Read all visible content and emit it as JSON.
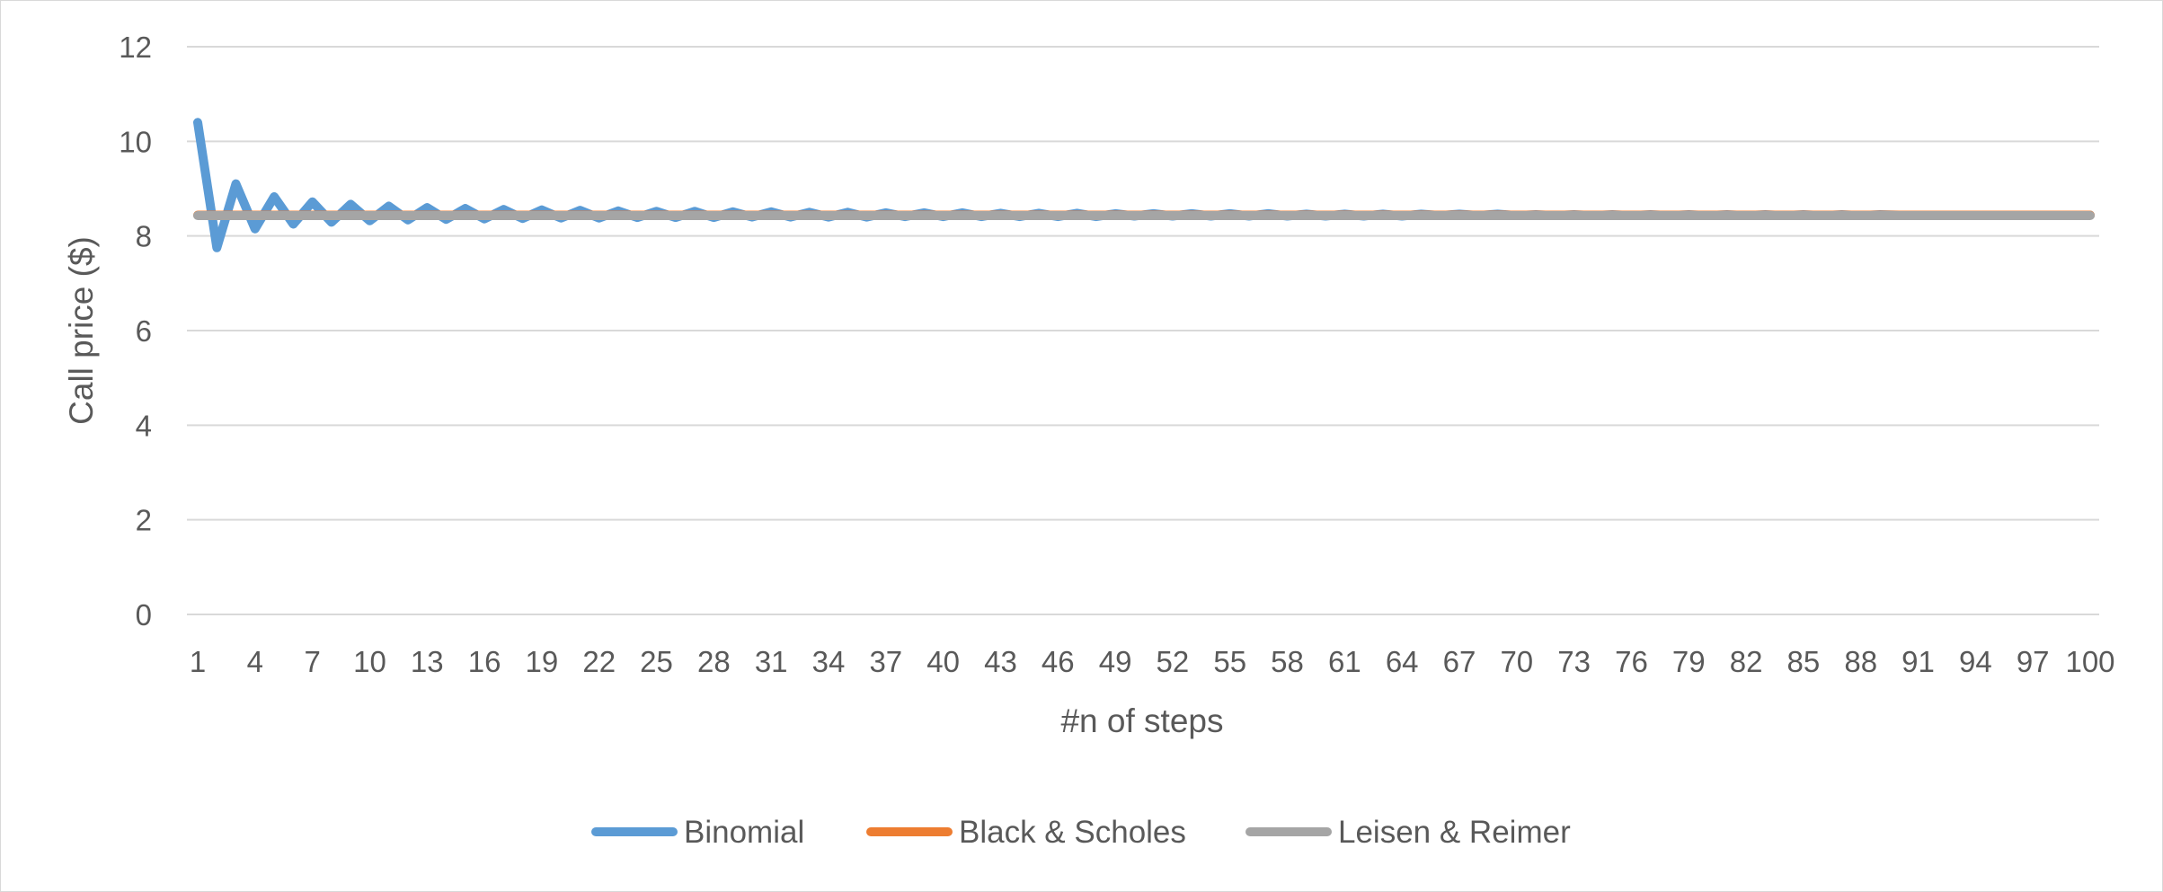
{
  "chart_data": {
    "type": "line",
    "title": "",
    "xlabel": "#n of steps",
    "ylabel": "Call price ($)",
    "ylim": [
      0,
      12
    ],
    "yticks": [
      0,
      2,
      4,
      6,
      8,
      10,
      12
    ],
    "x_tick_labels": [
      "1",
      "4",
      "7",
      "10",
      "13",
      "16",
      "19",
      "22",
      "25",
      "28",
      "31",
      "34",
      "37",
      "40",
      "43",
      "46",
      "49",
      "52",
      "55",
      "58",
      "61",
      "64",
      "67",
      "70",
      "73",
      "76",
      "79",
      "82",
      "85",
      "88",
      "91",
      "94",
      "97",
      "100"
    ],
    "grid": true,
    "legend_position": "bottom",
    "x": [
      1,
      2,
      3,
      4,
      5,
      6,
      7,
      8,
      9,
      10,
      11,
      12,
      13,
      14,
      15,
      16,
      17,
      18,
      19,
      20,
      21,
      22,
      23,
      24,
      25,
      26,
      27,
      28,
      29,
      30,
      31,
      32,
      33,
      34,
      35,
      36,
      37,
      38,
      39,
      40,
      41,
      42,
      43,
      44,
      45,
      46,
      47,
      48,
      49,
      50,
      51,
      52,
      53,
      54,
      55,
      56,
      57,
      58,
      59,
      60,
      61,
      62,
      63,
      64,
      65,
      66,
      67,
      68,
      69,
      70,
      71,
      72,
      73,
      74,
      75,
      76,
      77,
      78,
      79,
      80,
      81,
      82,
      83,
      84,
      85,
      86,
      87,
      88,
      89,
      90,
      91,
      92,
      93,
      94,
      95,
      96,
      97,
      98,
      99,
      100
    ],
    "series": [
      {
        "name": "Binomial",
        "color": "#5b9bd5",
        "values": [
          10.4,
          7.75,
          9.1,
          8.15,
          8.83,
          8.25,
          8.72,
          8.29,
          8.67,
          8.32,
          8.63,
          8.34,
          8.6,
          8.35,
          8.58,
          8.36,
          8.56,
          8.37,
          8.55,
          8.38,
          8.54,
          8.38,
          8.53,
          8.39,
          8.52,
          8.39,
          8.52,
          8.39,
          8.51,
          8.4,
          8.51,
          8.4,
          8.5,
          8.4,
          8.5,
          8.4,
          8.49,
          8.41,
          8.49,
          8.41,
          8.49,
          8.41,
          8.48,
          8.41,
          8.48,
          8.41,
          8.48,
          8.41,
          8.47,
          8.42,
          8.47,
          8.42,
          8.47,
          8.42,
          8.47,
          8.42,
          8.47,
          8.42,
          8.46,
          8.42,
          8.46,
          8.42,
          8.46,
          8.42,
          8.46,
          8.43,
          8.46,
          8.43,
          8.46,
          8.43,
          8.45,
          8.43,
          8.45,
          8.43,
          8.45,
          8.43,
          8.45,
          8.43,
          8.45,
          8.43,
          8.45,
          8.43,
          8.45,
          8.43,
          8.45,
          8.43,
          8.45,
          8.43,
          8.45,
          8.44,
          8.44,
          8.44,
          8.44,
          8.44,
          8.44,
          8.44,
          8.44,
          8.44,
          8.44,
          8.44
        ]
      },
      {
        "name": "Black & Scholes",
        "color": "#ed7d31",
        "values": [
          8.44,
          8.44,
          8.44,
          8.44,
          8.44,
          8.44,
          8.44,
          8.44,
          8.44,
          8.44,
          8.44,
          8.44,
          8.44,
          8.44,
          8.44,
          8.44,
          8.44,
          8.44,
          8.44,
          8.44,
          8.44,
          8.44,
          8.44,
          8.44,
          8.44,
          8.44,
          8.44,
          8.44,
          8.44,
          8.44,
          8.44,
          8.44,
          8.44,
          8.44,
          8.44,
          8.44,
          8.44,
          8.44,
          8.44,
          8.44,
          8.44,
          8.44,
          8.44,
          8.44,
          8.44,
          8.44,
          8.44,
          8.44,
          8.44,
          8.44,
          8.44,
          8.44,
          8.44,
          8.44,
          8.44,
          8.44,
          8.44,
          8.44,
          8.44,
          8.44,
          8.44,
          8.44,
          8.44,
          8.44,
          8.44,
          8.44,
          8.44,
          8.44,
          8.44,
          8.44,
          8.44,
          8.44,
          8.44,
          8.44,
          8.44,
          8.44,
          8.44,
          8.44,
          8.44,
          8.44,
          8.44,
          8.44,
          8.44,
          8.44,
          8.44,
          8.44,
          8.44,
          8.44,
          8.44,
          8.44,
          8.44,
          8.44,
          8.44,
          8.44,
          8.44,
          8.44,
          8.44,
          8.44,
          8.44,
          8.44
        ]
      },
      {
        "name": "Leisen & Reimer",
        "color": "#a5a5a5",
        "values": [
          8.43,
          8.43,
          8.43,
          8.43,
          8.43,
          8.43,
          8.43,
          8.43,
          8.43,
          8.43,
          8.43,
          8.43,
          8.43,
          8.43,
          8.43,
          8.43,
          8.43,
          8.43,
          8.43,
          8.43,
          8.43,
          8.43,
          8.43,
          8.43,
          8.43,
          8.43,
          8.43,
          8.43,
          8.43,
          8.43,
          8.43,
          8.43,
          8.43,
          8.43,
          8.43,
          8.43,
          8.43,
          8.43,
          8.43,
          8.43,
          8.43,
          8.43,
          8.43,
          8.43,
          8.43,
          8.43,
          8.43,
          8.43,
          8.43,
          8.43,
          8.43,
          8.43,
          8.43,
          8.43,
          8.43,
          8.43,
          8.43,
          8.43,
          8.43,
          8.43,
          8.43,
          8.43,
          8.43,
          8.43,
          8.43,
          8.43,
          8.43,
          8.43,
          8.43,
          8.43,
          8.43,
          8.43,
          8.43,
          8.43,
          8.43,
          8.43,
          8.43,
          8.43,
          8.43,
          8.43,
          8.43,
          8.43,
          8.43,
          8.43,
          8.43,
          8.43,
          8.43,
          8.43,
          8.43,
          8.43,
          8.43,
          8.43,
          8.43,
          8.43,
          8.43,
          8.43,
          8.43,
          8.43,
          8.43,
          8.43
        ]
      }
    ]
  }
}
